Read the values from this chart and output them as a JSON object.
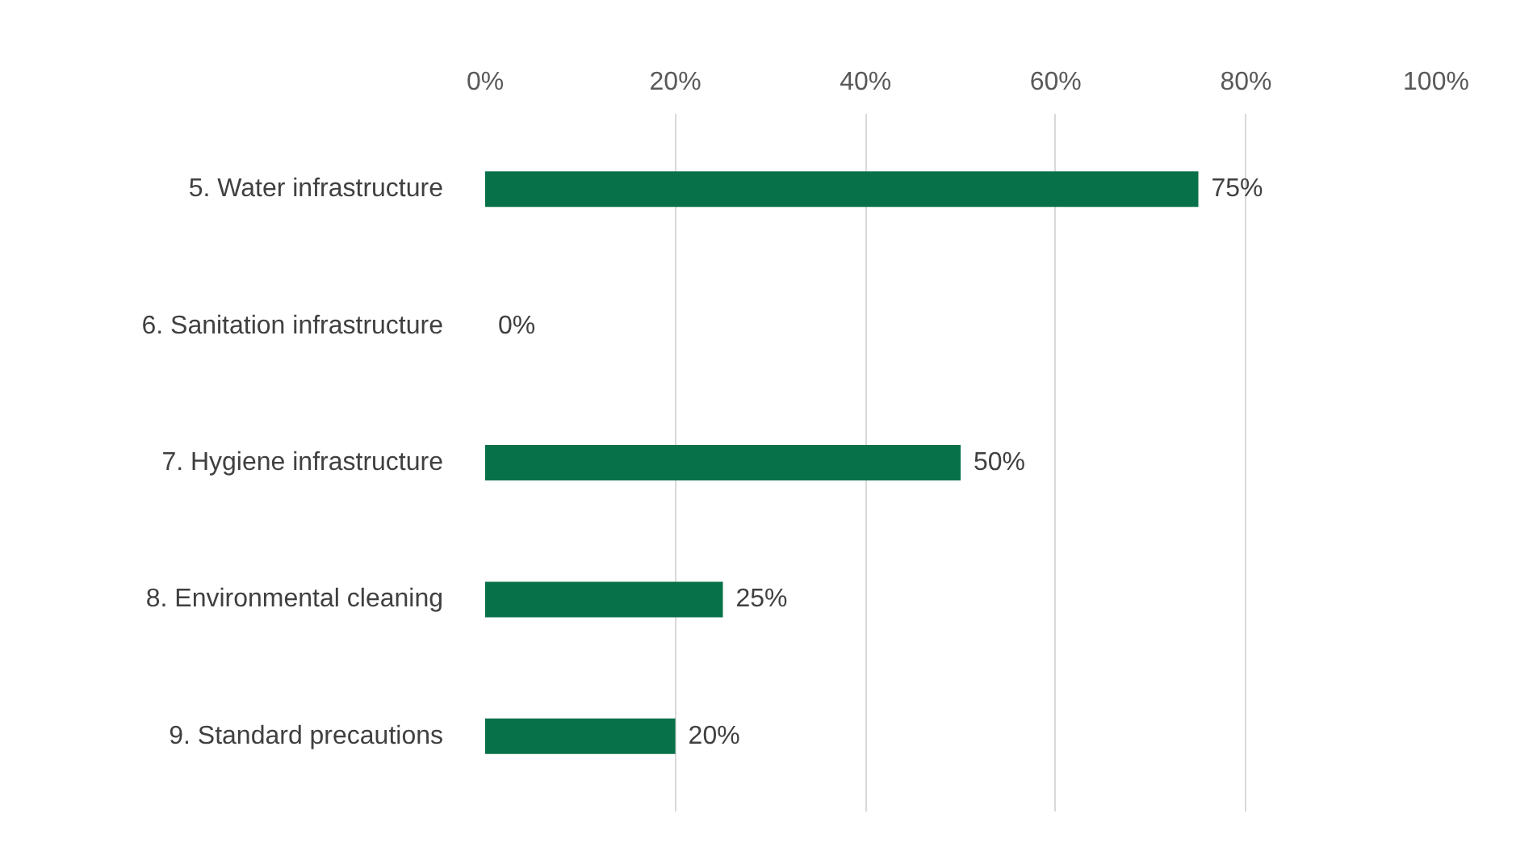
{
  "chart_data": {
    "type": "bar",
    "orientation": "horizontal",
    "categories": [
      "5. Water infrastructure",
      "6. Sanitation infrastructure",
      "7. Hygiene infrastructure",
      "8. Environmental cleaning",
      "9. Standard precautions"
    ],
    "values": [
      75,
      0,
      50,
      25,
      20
    ],
    "value_labels": [
      "75%",
      "0%",
      "50%",
      "25%",
      "20%"
    ],
    "color": "#077149",
    "xlim": [
      0,
      100
    ],
    "xticks": [
      {
        "value": 0,
        "label": "0%"
      },
      {
        "value": 20,
        "label": "20%"
      },
      {
        "value": 40,
        "label": "40%"
      },
      {
        "value": 60,
        "label": "60%"
      },
      {
        "value": 80,
        "label": "80%"
      },
      {
        "value": 100,
        "label": "100%"
      }
    ],
    "grid": "x"
  }
}
